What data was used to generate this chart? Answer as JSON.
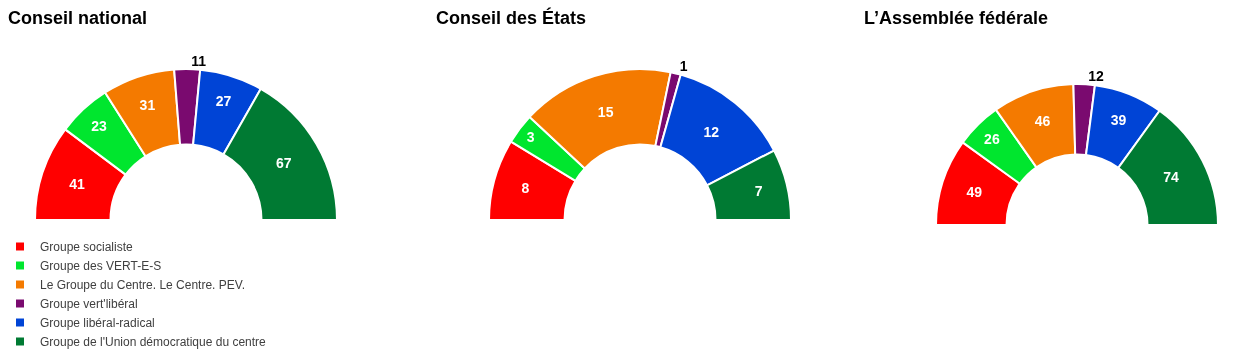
{
  "chart_data": [
    {
      "type": "donut",
      "title": "Conseil national",
      "categories": [
        "Groupe socialiste",
        "Groupe des VERT-E-S",
        "Le Groupe du Centre. Le Centre. PEV.",
        "Groupe vert'libéral",
        "Groupe libéral-radical",
        "Groupe de l'Union démocratique du centre"
      ],
      "values": [
        41,
        23,
        31,
        11,
        27,
        67
      ],
      "colors": [
        "#ff0000",
        "#00e62e",
        "#f47a00",
        "#7a0a6f",
        "#0044d6",
        "#007a33"
      ],
      "data_labels": true,
      "legend": "bottom"
    },
    {
      "type": "donut",
      "title": "Conseil des États",
      "categories": [
        null,
        null,
        null,
        null,
        null,
        null
      ],
      "values": [
        8,
        3,
        15,
        1,
        12,
        7
      ],
      "colors": [
        "#ff0000",
        "#00e62e",
        "#f47a00",
        "#7a0a6f",
        "#0044d6",
        "#007a33"
      ],
      "data_labels": true
    },
    {
      "type": "donut",
      "title": "L’Assemblée fédérale",
      "categories": [
        null,
        null,
        null,
        null,
        null,
        null
      ],
      "values": [
        49,
        26,
        46,
        12,
        39,
        74
      ],
      "colors": [
        "#ff0000",
        "#00e62e",
        "#f47a00",
        "#7a0a6f",
        "#0044d6",
        "#007a33"
      ],
      "data_labels": true
    }
  ]
}
